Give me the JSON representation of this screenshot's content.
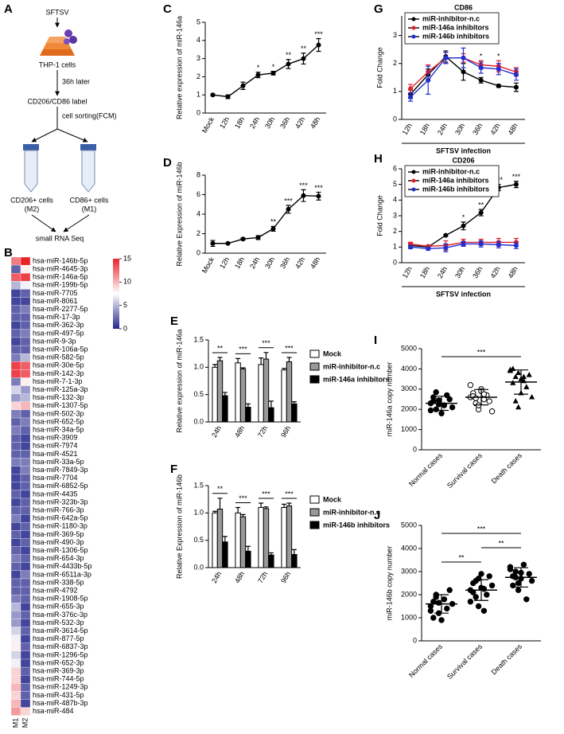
{
  "diagram": {
    "panel": "A",
    "virus": "SFTSV",
    "cells": "THP-1 cells",
    "time": "36h later",
    "label": "CD206/CD86 label",
    "sorting": "cell sorting(FCM)",
    "left": "CD206+ cells",
    "left_type": "(M2)",
    "right": "CD86+ cells",
    "right_type": "(M1)",
    "result": "small RNA Seq"
  },
  "chart_data": [
    {
      "panel": "B",
      "type": "heatmap",
      "rows": [
        "hsa-miR-146b-5p",
        "hsa-miR-4645-3p",
        "hsa-miR-146a-5p",
        "hsa-miR-199b-5p",
        "hsa-miR-7705",
        "hsa-miR-8061",
        "hsa-miR-2277-5p",
        "hsa-miR-17-3p",
        "hsa-miR-362-3p",
        "hsa-miR-497-5p",
        "hsa-miR-9-3p",
        "hsa-miR-106a-5p",
        "hsa-miR-582-5p",
        "hsa-miR-30e-5p",
        "hsa-miR-142-3p",
        "hsa-miR-7-1-3p",
        "hsa-miR-125a-3p",
        "hsa-miR-132-3p",
        "hsa-miR-1307-5p",
        "hsa-miR-502-3p",
        "hsa-miR-652-5p",
        "hsa-miR-34a-5p",
        "hsa-miR-3909",
        "hsa-miR-7974",
        "hsa-miR-4521",
        "hsa-miR-33a-5p",
        "hsa-miR-7849-3p",
        "hsa-miR-7704",
        "hsa-miR-6852-5p",
        "hsa-miR-4435",
        "hsa-miR-323b-3p",
        "hsa-miR-766-3p",
        "hsa-miR-642a-5p",
        "hsa-miR-1180-3p",
        "hsa-miR-369-5p",
        "hsa-miR-490-3p",
        "hsa-miR-1306-5p",
        "hsa-miR-654-3p",
        "hsa-miR-4433b-5p",
        "hsa-miR-6511a-3p",
        "hsa-miR-338-5p",
        "hsa-miR-4792",
        "hsa-miR-1908-5p",
        "hsa-miR-655-3p",
        "hsa-miR-376c-3p",
        "hsa-miR-532-3p",
        "hsa-miR-3614-5p",
        "hsa-miR-877-5p",
        "hsa-miR-6837-3p",
        "hsa-miR-1296-5p",
        "hsa-miR-652-3p",
        "hsa-miR-369-3p",
        "hsa-miR-744-5p",
        "hsa-miR-1249-3p",
        "hsa-miR-431-5p",
        "hsa-miR-487b-3p",
        "hsa-miR-484"
      ],
      "series": [
        {
          "name": "M1",
          "values": [
            12,
            2,
            13,
            5,
            1,
            1,
            2,
            2,
            1,
            2,
            1,
            2,
            3,
            14,
            14,
            3,
            6,
            4,
            9,
            3,
            2,
            3,
            2,
            2,
            2,
            3,
            1,
            1,
            1,
            2,
            1,
            2,
            3,
            1,
            2,
            1,
            2,
            3,
            2,
            1,
            2,
            2,
            3,
            5,
            4,
            4,
            6,
            7,
            8,
            6,
            7,
            9,
            9,
            10,
            9,
            10,
            11
          ]
        },
        {
          "name": "M2",
          "values": [
            15,
            8,
            14,
            7,
            2,
            1,
            3,
            2,
            2,
            3,
            2,
            2,
            5,
            13,
            13,
            8,
            4,
            5,
            10,
            2,
            3,
            2,
            1,
            1,
            2,
            3,
            3,
            2,
            2,
            1,
            2,
            2,
            1,
            2,
            1,
            2,
            1,
            2,
            1,
            3,
            2,
            2,
            2,
            1,
            2,
            1,
            2,
            1,
            2,
            1,
            1,
            2,
            1,
            2,
            2,
            1,
            9
          ]
        }
      ],
      "colorbar": {
        "lim": [
          0,
          15
        ],
        "ticks": [
          0,
          5,
          10,
          15
        ],
        "colors": [
          "#26278c",
          "#ffffff",
          "#e8242b"
        ]
      }
    },
    {
      "panel": "C",
      "type": "line",
      "ylabel": "Relative expression of miR-146a",
      "categories": [
        "Mock",
        "12h",
        "18h",
        "24h",
        "30h",
        "36h",
        "42h",
        "48h"
      ],
      "values": [
        1,
        0.9,
        1.5,
        2.1,
        2.2,
        2.7,
        3.0,
        3.75
      ],
      "errors": [
        0.05,
        0.1,
        0.2,
        0.15,
        0.1,
        0.25,
        0.3,
        0.35
      ],
      "color": "#000000",
      "ylim": [
        0,
        5
      ],
      "yticks": [
        0,
        1,
        2,
        3,
        4,
        5
      ],
      "annotations": [
        {
          "x": "24h",
          "text": "*"
        },
        {
          "x": "30h",
          "text": "*"
        },
        {
          "x": "36h",
          "text": "**"
        },
        {
          "x": "42h",
          "text": "**"
        },
        {
          "x": "48h",
          "text": "***"
        }
      ]
    },
    {
      "panel": "D",
      "type": "line",
      "ylabel": "Relative Expression of miR-146b",
      "categories": [
        "Mock",
        "12h",
        "18h",
        "24h",
        "30h",
        "36h",
        "42h",
        "48h"
      ],
      "values": [
        1,
        1,
        1.45,
        1.6,
        2.5,
        4.5,
        5.9,
        5.85
      ],
      "errors": [
        0.3,
        0.05,
        0.1,
        0.2,
        0.25,
        0.4,
        0.6,
        0.4
      ],
      "color": "#000000",
      "ylim": [
        0,
        8
      ],
      "yticks": [
        0,
        2,
        4,
        6,
        8
      ],
      "annotations": [
        {
          "x": "30h",
          "text": "**"
        },
        {
          "x": "36h",
          "text": "***"
        },
        {
          "x": "42h",
          "text": "***"
        },
        {
          "x": "48h",
          "text": "***"
        }
      ]
    },
    {
      "panel": "E",
      "type": "bar",
      "ylabel": "Relative expression of miR-146a",
      "categories": [
        "24h",
        "48h",
        "72h",
        "96h"
      ],
      "series": [
        {
          "name": "Mock",
          "color": "#ffffff",
          "values": [
            1.0,
            1.08,
            1.05,
            0.95
          ],
          "errors": [
            0.05,
            0.08,
            0.12,
            0.03
          ]
        },
        {
          "name": "miR-inhibitor-n.c",
          "color": "#999999",
          "values": [
            1.12,
            0.97,
            1.15,
            1.1
          ],
          "errors": [
            0.06,
            0.02,
            0.12,
            0.08
          ]
        },
        {
          "name": "miR-146a inhibitors",
          "color": "#000000",
          "values": [
            0.48,
            0.27,
            0.26,
            0.33
          ],
          "errors": [
            0.06,
            0.06,
            0.12,
            0.04
          ]
        }
      ],
      "ylim": [
        0,
        1.5
      ],
      "yticks": [
        {
          "value": 0,
          "label": "0.0"
        },
        0.5,
        {
          "value": 1,
          "label": "1.0"
        },
        1.5
      ],
      "annotations": [
        {
          "x": "24h",
          "text": "**"
        },
        {
          "x": "48h",
          "text": "***"
        },
        {
          "x": "72h",
          "text": "***"
        },
        {
          "x": "96h",
          "text": "***"
        }
      ]
    },
    {
      "panel": "F",
      "type": "bar",
      "ylabel": "Relative Expression of miR-146b",
      "categories": [
        "24h",
        "48h",
        "72h",
        "96h"
      ],
      "series": [
        {
          "name": "Mock",
          "color": "#ffffff",
          "values": [
            1.0,
            1.0,
            1.1,
            1.1
          ],
          "errors": [
            0.03,
            0.1,
            0.08,
            0.06
          ]
        },
        {
          "name": "miR-inhibitor-n.c",
          "color": "#999999",
          "values": [
            1.07,
            0.93,
            1.08,
            1.13
          ],
          "errors": [
            0.2,
            0.04,
            0.03,
            0.05
          ]
        },
        {
          "name": "miR-146b inhibitors",
          "color": "#000000",
          "values": [
            0.47,
            0.3,
            0.23,
            0.24
          ],
          "errors": [
            0.1,
            0.09,
            0.04,
            0.09
          ]
        }
      ],
      "ylim": [
        0,
        1.5
      ],
      "yticks": [
        {
          "value": 0,
          "label": "0.0"
        },
        0.5,
        {
          "value": 1,
          "label": "1.0"
        },
        1.5
      ],
      "annotations": [
        {
          "x": "24h",
          "text": "**"
        },
        {
          "x": "48h",
          "text": "***"
        },
        {
          "x": "72h",
          "text": "***"
        },
        {
          "x": "96h",
          "text": "***"
        }
      ]
    },
    {
      "panel": "G",
      "type": "line",
      "title": "CD86",
      "ylabel": "Fold Change",
      "xlabel": "SFTSV infection",
      "legend": "upper-left",
      "categories": [
        "12h",
        "18h",
        "24h",
        "30h",
        "36h",
        "42h",
        "48h"
      ],
      "series": [
        {
          "name": "miR-inhibitor-n.c",
          "color": "#000000",
          "values": [
            0.9,
            1.6,
            2.25,
            1.7,
            1.4,
            1.2,
            1.15
          ],
          "errors": [
            0.15,
            0.2,
            0.2,
            0.3,
            0.1,
            0.05,
            0.15
          ]
        },
        {
          "name": "miR-146a inhibitors",
          "color": "#e0202a",
          "values": [
            1.1,
            1.7,
            2.2,
            2.2,
            1.95,
            1.9,
            1.7
          ],
          "errors": [
            0.15,
            0.25,
            0.2,
            0.15,
            0.15,
            0.2,
            0.15
          ]
        },
        {
          "name": "miR-146b inhibitors",
          "color": "#1f2fd0",
          "values": [
            0.8,
            1.4,
            2.2,
            2.2,
            1.85,
            1.8,
            1.6
          ],
          "errors": [
            0.15,
            0.5,
            0.2,
            0.35,
            0.2,
            0.2,
            0.2
          ]
        }
      ],
      "ylim": [
        0,
        3.7
      ],
      "yticks": [
        0,
        1,
        2,
        3
      ],
      "annotations": [
        {
          "x": "30h",
          "text": "*"
        },
        {
          "x": "36h",
          "text": "*"
        },
        {
          "x": "42h",
          "text": "*"
        }
      ]
    },
    {
      "panel": "H",
      "type": "line",
      "title": "CD206",
      "ylabel": "Fold Change",
      "xlabel": "SFTSV infection",
      "legend": "upper-left",
      "categories": [
        "12h",
        "18h",
        "24h",
        "30h",
        "36h",
        "42h",
        "48h"
      ],
      "series": [
        {
          "name": "miR-inhibitor-n.c",
          "color": "#000000",
          "values": [
            1.1,
            1.0,
            1.75,
            2.35,
            3.2,
            4.8,
            5.0
          ],
          "errors": [
            0.15,
            0.05,
            0.05,
            0.25,
            0.2,
            0.2,
            0.2
          ]
        },
        {
          "name": "miR-146a inhibitors",
          "color": "#e0202a",
          "values": [
            1.2,
            1.05,
            1.1,
            1.3,
            1.3,
            1.3,
            1.3
          ],
          "errors": [
            0.1,
            0.05,
            0.3,
            0.2,
            0.2,
            0.25,
            0.25
          ]
        },
        {
          "name": "miR-146b inhibitors",
          "color": "#1f2fd0",
          "values": [
            1.0,
            0.9,
            0.95,
            1.2,
            1.2,
            1.15,
            1.1
          ],
          "errors": [
            0.1,
            0.1,
            0.25,
            0.15,
            0.2,
            0.2,
            0.2
          ]
        }
      ],
      "ylim": [
        0,
        6
      ],
      "yticks": [
        0,
        1,
        2,
        3,
        4,
        5,
        6
      ],
      "annotations": [
        {
          "x": "30h",
          "text": "*"
        },
        {
          "x": "36h",
          "text": "**"
        },
        {
          "x": "42h",
          "text": "***"
        },
        {
          "x": "48h",
          "text": "***"
        }
      ]
    },
    {
      "panel": "I",
      "type": "dot",
      "ylabel": "miR-146a copy number",
      "categories": [
        "Normal cases",
        "Survival cases",
        "Death cases"
      ],
      "groups": [
        {
          "marker": "circle",
          "values": [
            2300,
            2600,
            2000,
            2450,
            1800,
            2200,
            2700,
            2500,
            2100,
            1950,
            2400,
            2850,
            2250
          ],
          "mean": 2300,
          "sd": 350
        },
        {
          "marker": "open-circle",
          "values": [
            2600,
            2800,
            2300,
            2000,
            3000,
            2500,
            2700,
            2400,
            1900,
            3200,
            2650,
            2550,
            2200,
            2900,
            2750
          ],
          "mean": 2600,
          "sd": 380
        },
        {
          "marker": "triangle",
          "values": [
            3900,
            4000,
            3600,
            2100,
            2800,
            3400,
            3100,
            3700,
            2600,
            3950,
            3300,
            2400,
            3800,
            3500,
            3600
          ],
          "mean": 3350,
          "sd": 600
        }
      ],
      "ylim": [
        0,
        5000
      ],
      "yticks": [
        0,
        1000,
        2000,
        3000,
        4000,
        5000
      ],
      "comparisons": [
        {
          "from": "Normal cases",
          "to": "Death cases",
          "text": "***"
        }
      ]
    },
    {
      "panel": "J",
      "type": "dot",
      "ylabel": "miR-146b copy number",
      "categories": [
        "Normal cases",
        "Survival cases",
        "Death cases"
      ],
      "groups": [
        {
          "marker": "circle",
          "values": [
            1500,
            1700,
            2000,
            1200,
            900,
            1800,
            1400,
            2200,
            1600,
            1300,
            1000,
            1900,
            1650
          ],
          "mean": 1600,
          "sd": 400
        },
        {
          "marker": "circle",
          "values": [
            2200,
            2500,
            1900,
            2700,
            2300,
            1300,
            2000,
            2800,
            2400,
            1700,
            2100,
            2600,
            1500,
            2900,
            2250
          ],
          "mean": 2200,
          "sd": 450
        },
        {
          "marker": "circle",
          "values": [
            3200,
            2800,
            3000,
            2500,
            2700,
            3300,
            1800,
            2900,
            2600,
            3100,
            2400,
            2750,
            2200,
            2950
          ],
          "mean": 2750,
          "sd": 420
        }
      ],
      "ylim": [
        0,
        5000
      ],
      "yticks": [
        0,
        1000,
        2000,
        3000,
        4000,
        5000
      ],
      "comparisons": [
        {
          "from": "Normal cases",
          "to": "Death cases",
          "text": "***"
        },
        {
          "from": "Survival cases",
          "to": "Death cases",
          "text": "**"
        },
        {
          "from": "Normal cases",
          "to": "Survival cases",
          "text": "**"
        }
      ]
    }
  ]
}
